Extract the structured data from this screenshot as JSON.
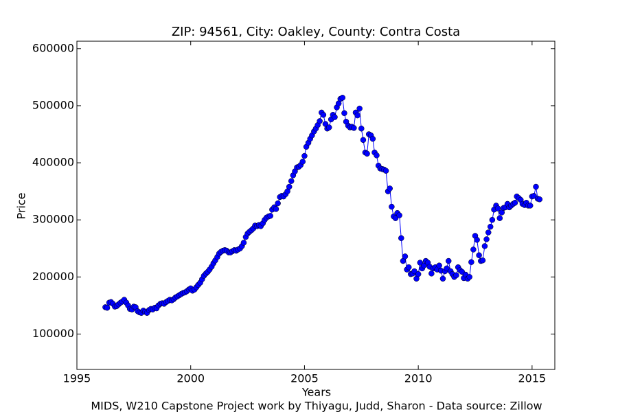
{
  "chart_data": {
    "type": "line",
    "title": "ZIP: 94561, City: Oakley, County: Contra Costa",
    "xlabel": "Years",
    "ylabel": "Price",
    "footnote": "MIDS, W210 Capstone Project work by Thiyagu, Judd, Sharon  -  Data source: Zillow",
    "xlim": [
      1995,
      2016
    ],
    "xticks": [
      1995,
      2000,
      2005,
      2010,
      2015
    ],
    "ylim": [
      38000,
      613000
    ],
    "yticks": [
      100000,
      200000,
      300000,
      400000,
      500000,
      600000
    ],
    "x": [
      1996.25,
      1996.33,
      1996.42,
      1996.5,
      1996.58,
      1996.67,
      1996.75,
      1996.83,
      1996.92,
      1997.0,
      1997.08,
      1997.17,
      1997.25,
      1997.33,
      1997.42,
      1997.5,
      1997.58,
      1997.67,
      1997.75,
      1997.83,
      1997.92,
      1998.0,
      1998.08,
      1998.17,
      1998.25,
      1998.33,
      1998.42,
      1998.5,
      1998.58,
      1998.67,
      1998.75,
      1998.83,
      1998.92,
      1999.0,
      1999.08,
      1999.17,
      1999.25,
      1999.33,
      1999.42,
      1999.5,
      1999.58,
      1999.67,
      1999.75,
      1999.83,
      1999.92,
      2000.0,
      2000.08,
      2000.17,
      2000.25,
      2000.33,
      2000.42,
      2000.5,
      2000.58,
      2000.67,
      2000.75,
      2000.83,
      2000.92,
      2001.0,
      2001.08,
      2001.17,
      2001.25,
      2001.33,
      2001.42,
      2001.5,
      2001.58,
      2001.67,
      2001.75,
      2001.83,
      2001.92,
      2002.0,
      2002.08,
      2002.17,
      2002.25,
      2002.33,
      2002.42,
      2002.5,
      2002.58,
      2002.67,
      2002.75,
      2002.83,
      2002.92,
      2003.0,
      2003.08,
      2003.17,
      2003.25,
      2003.33,
      2003.42,
      2003.5,
      2003.58,
      2003.67,
      2003.75,
      2003.83,
      2003.92,
      2004.0,
      2004.08,
      2004.17,
      2004.25,
      2004.33,
      2004.42,
      2004.5,
      2004.58,
      2004.67,
      2004.75,
      2004.83,
      2004.92,
      2005.0,
      2005.08,
      2005.17,
      2005.25,
      2005.33,
      2005.42,
      2005.5,
      2005.58,
      2005.67,
      2005.75,
      2005.83,
      2005.92,
      2006.0,
      2006.08,
      2006.17,
      2006.25,
      2006.33,
      2006.42,
      2006.5,
      2006.58,
      2006.67,
      2006.75,
      2006.83,
      2006.92,
      2007.0,
      2007.08,
      2007.17,
      2007.25,
      2007.33,
      2007.42,
      2007.5,
      2007.58,
      2007.67,
      2007.75,
      2007.83,
      2007.92,
      2008.0,
      2008.08,
      2008.17,
      2008.25,
      2008.33,
      2008.42,
      2008.5,
      2008.58,
      2008.67,
      2008.75,
      2008.83,
      2008.92,
      2009.0,
      2009.08,
      2009.17,
      2009.25,
      2009.33,
      2009.42,
      2009.5,
      2009.58,
      2009.67,
      2009.75,
      2009.83,
      2009.92,
      2010.0,
      2010.08,
      2010.17,
      2010.25,
      2010.33,
      2010.42,
      2010.5,
      2010.58,
      2010.67,
      2010.75,
      2010.83,
      2010.92,
      2011.0,
      2011.08,
      2011.17,
      2011.25,
      2011.33,
      2011.42,
      2011.5,
      2011.58,
      2011.67,
      2011.75,
      2011.83,
      2011.92,
      2012.0,
      2012.08,
      2012.17,
      2012.25,
      2012.33,
      2012.42,
      2012.5,
      2012.58,
      2012.67,
      2012.75,
      2012.83,
      2012.92,
      2013.0,
      2013.08,
      2013.17,
      2013.25,
      2013.33,
      2013.42,
      2013.5,
      2013.58,
      2013.67,
      2013.75,
      2013.83,
      2013.92,
      2014.0,
      2014.08,
      2014.17,
      2014.25,
      2014.33,
      2014.42,
      2014.5,
      2014.58,
      2014.67,
      2014.75,
      2014.83,
      2014.92,
      2015.0,
      2015.08,
      2015.17,
      2015.25,
      2015.33
    ],
    "series": [
      {
        "color": "#0000ff",
        "values": [
          147000,
          146000,
          155000,
          156000,
          153000,
          148000,
          149000,
          152000,
          155000,
          157000,
          160000,
          155000,
          150000,
          144000,
          143000,
          148000,
          147000,
          140000,
          138000,
          137000,
          141000,
          139000,
          137000,
          142000,
          144000,
          143000,
          146000,
          145000,
          150000,
          153000,
          154000,
          153000,
          156000,
          158000,
          160000,
          159000,
          161000,
          164000,
          166000,
          168000,
          170000,
          172000,
          173000,
          175000,
          178000,
          180000,
          176000,
          178000,
          182000,
          186000,
          190000,
          196000,
          202000,
          206000,
          209000,
          213000,
          218000,
          224000,
          229000,
          235000,
          241000,
          244000,
          246000,
          247000,
          246000,
          243000,
          243000,
          245000,
          247000,
          246000,
          248000,
          250000,
          254000,
          260000,
          270000,
          276000,
          279000,
          282000,
          285000,
          290000,
          289000,
          291000,
          289000,
          294000,
          300000,
          304000,
          306000,
          307000,
          318000,
          322000,
          319000,
          329000,
          340000,
          342000,
          341000,
          345000,
          350000,
          358000,
          368000,
          378000,
          385000,
          392000,
          393000,
          396000,
          402000,
          412000,
          428000,
          435000,
          442000,
          448000,
          455000,
          460000,
          466000,
          473000,
          488000,
          484000,
          468000,
          460000,
          462000,
          476000,
          484000,
          480000,
          497000,
          504000,
          512000,
          514000,
          487000,
          472000,
          465000,
          462000,
          463000,
          461000,
          488000,
          483000,
          495000,
          460000,
          440000,
          418000,
          416000,
          450000,
          448000,
          442000,
          418000,
          413000,
          395000,
          390000,
          389000,
          388000,
          386000,
          350000,
          355000,
          323000,
          306000,
          303000,
          312000,
          308000,
          268000,
          228000,
          236000,
          213000,
          217000,
          205000,
          206000,
          210000,
          197000,
          205000,
          225000,
          215000,
          220000,
          228000,
          225000,
          218000,
          206000,
          215000,
          217000,
          213000,
          220000,
          211000,
          197000,
          210000,
          215000,
          228000,
          210000,
          205000,
          200000,
          203000,
          217000,
          212000,
          209000,
          198000,
          204000,
          197000,
          200000,
          226000,
          248000,
          272000,
          265000,
          238000,
          228000,
          229000,
          254000,
          266000,
          278000,
          288000,
          300000,
          318000,
          325000,
          320000,
          303000,
          313000,
          321000,
          322000,
          328000,
          322000,
          325000,
          328000,
          330000,
          341000,
          338000,
          335000,
          328000,
          326000,
          330000,
          325000,
          325000,
          341000,
          342000,
          358000,
          337000,
          336000
        ]
      }
    ]
  }
}
